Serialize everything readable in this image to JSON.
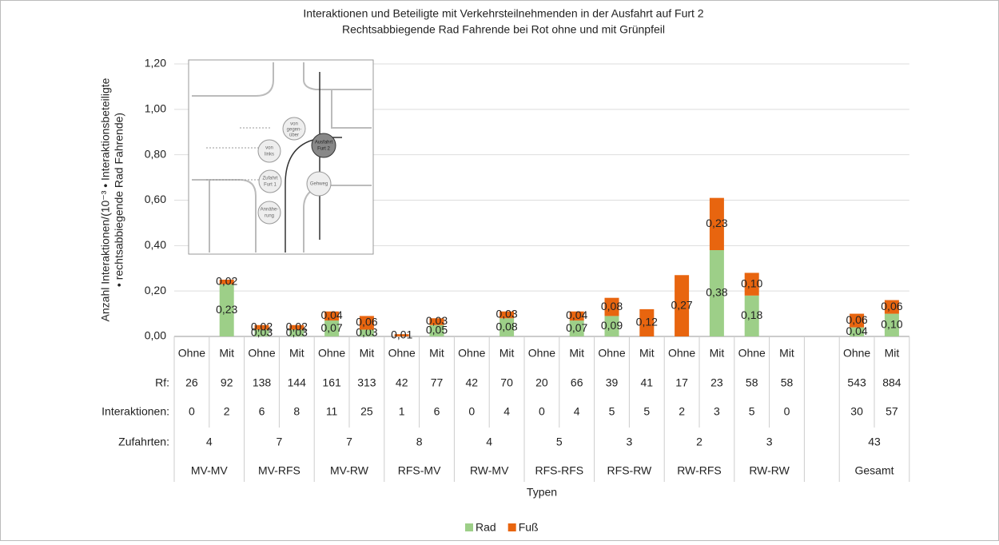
{
  "chart_data": {
    "type": "bar",
    "title": "Interaktionen und Beteiligte mit Verkehrsteilnehmenden in der Ausfahrt auf Furt 2",
    "subtitle": "Rechtsabbiegende Rad Fahrende bei Rot ohne und mit Grünpfeil",
    "y_label": [
      "Anzahl Interaktionen/(10⁻³ • Interaktionsbeteiligte",
      "• rechtsabbiegende Rad Fahrende)"
    ],
    "x_label": "Typen",
    "stacked": true,
    "categories": [
      "Ohne",
      "Mit",
      "Ohne",
      "Mit",
      "Ohne",
      "Mit",
      "Ohne",
      "Mit",
      "Ohne",
      "Mit",
      "Ohne",
      "Mit",
      "Ohne",
      "Mit",
      "Ohne",
      "Mit",
      "Ohne",
      "Mit",
      null,
      "Ohne",
      "Mit"
    ],
    "series": [
      {
        "name": "Rad",
        "color": "#9dcf88",
        "values": [
          null,
          0.23,
          0.03,
          0.03,
          0.07,
          0.03,
          null,
          0.05,
          null,
          0.08,
          null,
          0.07,
          0.09,
          null,
          null,
          0.38,
          0.18,
          null,
          null,
          0.04,
          0.1
        ],
        "value_labels": [
          null,
          "0,23",
          "0,03",
          "0,03",
          "0,07",
          "0,03",
          null,
          "0,05",
          null,
          "0,08",
          null,
          "0,07",
          "0,09",
          null,
          null,
          "0,38",
          "0,18",
          null,
          null,
          "0,04",
          "0,10"
        ]
      },
      {
        "name": "Fuß",
        "color": "#e8650f",
        "values": [
          null,
          0.02,
          0.02,
          0.02,
          0.04,
          0.06,
          0.01,
          0.03,
          null,
          0.03,
          null,
          0.04,
          0.08,
          0.12,
          0.27,
          0.23,
          0.1,
          null,
          null,
          0.06,
          0.06
        ],
        "value_labels": [
          null,
          "0,02",
          "0,02",
          "0,02",
          "0,04",
          "0,06",
          "0,01",
          "0,03",
          null,
          "0,03",
          null,
          "0,04",
          "0,08",
          "0,12",
          "0,27",
          "0,23",
          "0,10",
          null,
          null,
          "0,06",
          "0,06"
        ]
      }
    ],
    "table_rows": [
      {
        "label": "Rf:",
        "values": [
          26,
          92,
          138,
          144,
          161,
          313,
          42,
          77,
          42,
          70,
          20,
          66,
          39,
          41,
          17,
          23,
          58,
          58,
          null,
          543,
          884
        ]
      },
      {
        "label": "Interaktionen:",
        "values": [
          0,
          2,
          6,
          8,
          11,
          25,
          1,
          6,
          0,
          4,
          0,
          4,
          5,
          5,
          2,
          3,
          5,
          0,
          null,
          30,
          57
        ]
      }
    ],
    "groups_label": "Zufahrten:",
    "groups": [
      {
        "name": "MV-MV",
        "zufahrten": 4
      },
      {
        "name": "MV-RFS",
        "zufahrten": 7
      },
      {
        "name": "MV-RW",
        "zufahrten": 7
      },
      {
        "name": "RFS-MV",
        "zufahrten": 8
      },
      {
        "name": "RW-MV",
        "zufahrten": 4
      },
      {
        "name": "RFS-RFS",
        "zufahrten": 5
      },
      {
        "name": "RFS-RW",
        "zufahrten": 3
      },
      {
        "name": "RW-RFS",
        "zufahrten": 2
      },
      {
        "name": "RW-RW",
        "zufahrten": 3
      },
      {
        "name": "Gesamt",
        "zufahrten": 43
      }
    ],
    "ylim": [
      0,
      1.2
    ],
    "yticks": [
      {
        "value": 0,
        "label": "0,00"
      },
      {
        "value": 0.2,
        "label": "0,20"
      },
      {
        "value": 0.4,
        "label": "0,40"
      },
      {
        "value": 0.6,
        "label": "0,60"
      },
      {
        "value": 0.8,
        "label": "0,80"
      },
      {
        "value": 1.0,
        "label": "1,00"
      },
      {
        "value": 1.2,
        "label": "1,20"
      }
    ],
    "grid": true,
    "legend": "bottom",
    "inset": {
      "labels": [
        "von",
        "gegen-",
        "über",
        "Ausfahrt",
        "Furt 2",
        "von",
        "links",
        "Zufahrt",
        "Furt 1",
        "Gehweg",
        "Annähe-",
        "rung"
      ]
    }
  }
}
